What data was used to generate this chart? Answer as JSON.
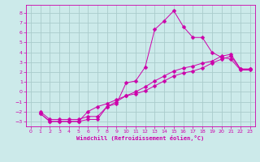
{
  "bg_color": "#cceaea",
  "grid_color": "#aacccc",
  "line_color": "#cc00aa",
  "xlim": [
    -0.5,
    23.5
  ],
  "ylim": [
    -3.5,
    8.8
  ],
  "yticks": [
    -3,
    -2,
    -1,
    0,
    1,
    2,
    3,
    4,
    5,
    6,
    7,
    8
  ],
  "xticks": [
    0,
    1,
    2,
    3,
    4,
    5,
    6,
    7,
    8,
    9,
    10,
    11,
    12,
    13,
    14,
    15,
    16,
    17,
    18,
    19,
    20,
    21,
    22,
    23
  ],
  "xlabel": "Windchill (Refroidissement éolien,°C)",
  "line1_x": [
    1,
    2,
    3,
    4,
    5,
    6,
    7,
    8,
    9,
    10,
    11,
    12,
    13,
    14,
    15,
    16,
    17,
    18,
    19,
    20,
    21,
    22,
    23
  ],
  "line1_y": [
    -2.2,
    -3.0,
    -3.0,
    -3.0,
    -3.0,
    -2.8,
    -2.8,
    -1.5,
    -1.2,
    0.9,
    1.1,
    2.5,
    6.3,
    7.2,
    8.2,
    6.6,
    5.5,
    5.5,
    4.0,
    3.5,
    3.3,
    2.2,
    2.2
  ],
  "line2_x": [
    1,
    2,
    3,
    4,
    5,
    6,
    7,
    8,
    9,
    10,
    11,
    12,
    13,
    14,
    15,
    16,
    17,
    18,
    19,
    20,
    21,
    22,
    23
  ],
  "line2_y": [
    -2.2,
    -3.0,
    -3.0,
    -3.0,
    -3.0,
    -2.0,
    -1.5,
    -1.2,
    -0.8,
    -0.4,
    -0.2,
    0.1,
    0.6,
    1.1,
    1.6,
    1.9,
    2.1,
    2.4,
    2.9,
    3.3,
    3.6,
    2.3,
    2.3
  ],
  "line3_x": [
    1,
    2,
    3,
    4,
    5,
    6,
    7,
    8,
    9,
    10,
    11,
    12,
    13,
    14,
    15,
    16,
    17,
    18,
    19,
    20,
    21,
    22,
    23
  ],
  "line3_y": [
    -2.0,
    -2.8,
    -2.8,
    -2.8,
    -2.8,
    -2.5,
    -2.5,
    -1.5,
    -1.0,
    -0.4,
    0.0,
    0.5,
    1.1,
    1.6,
    2.1,
    2.4,
    2.6,
    2.9,
    3.1,
    3.6,
    3.8,
    2.3,
    2.3
  ]
}
